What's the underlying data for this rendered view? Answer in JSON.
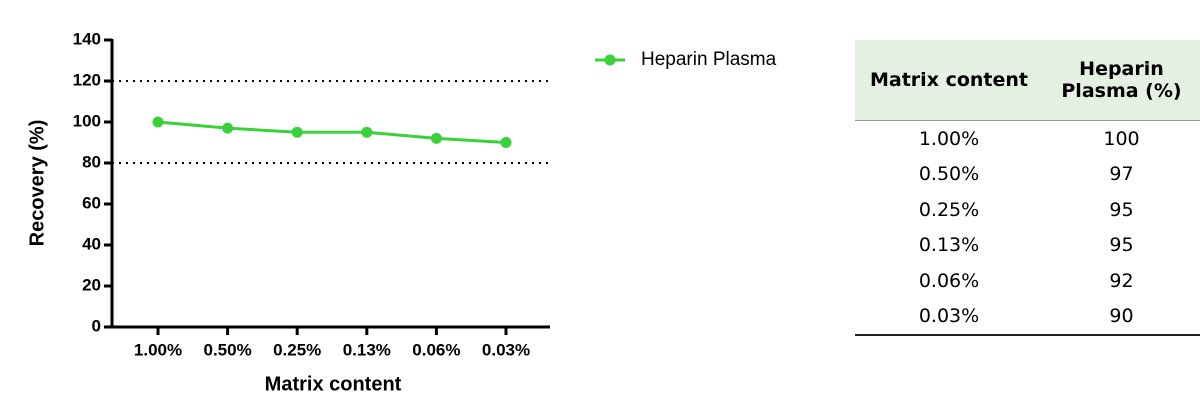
{
  "chart_data": {
    "type": "line",
    "x_label": "Matrix content",
    "y_label": "Recovery (%)",
    "categories": [
      "1.00%",
      "0.50%",
      "0.25%",
      "0.13%",
      "0.06%",
      "0.03%"
    ],
    "series": [
      {
        "name": "Heparin Plasma",
        "color": "#3ad13a",
        "values": [
          100,
          97,
          95,
          95,
          92,
          90
        ]
      }
    ],
    "ylim": [
      0,
      140
    ],
    "yticks": [
      0,
      20,
      40,
      60,
      80,
      100,
      120,
      140
    ],
    "reference_lines": [
      80,
      120
    ],
    "grid": false
  },
  "table": {
    "header": [
      "Matrix content",
      "Heparin Plasma (%)"
    ],
    "rows": [
      [
        "1.00%",
        100
      ],
      [
        "0.50%",
        97
      ],
      [
        "0.25%",
        95
      ],
      [
        "0.13%",
        95
      ],
      [
        "0.06%",
        92
      ],
      [
        "0.03%",
        90
      ]
    ]
  }
}
